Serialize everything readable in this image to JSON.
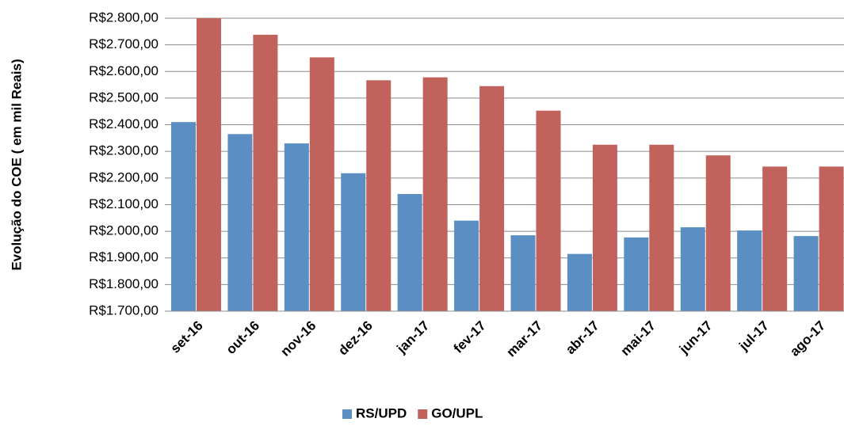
{
  "chart_data": {
    "type": "bar",
    "y_label": "Evolução do COE ( em mil Reais)",
    "categories": [
      "set-16",
      "out-16",
      "nov-16",
      "dez-16",
      "jan-17",
      "fev-17",
      "mar-17",
      "abr-17",
      "mai-17",
      "jun-17",
      "jul-17",
      "ago-17"
    ],
    "series": [
      {
        "name": "RS/UPD",
        "color": "#5b8ec2",
        "values": [
          2410,
          2365,
          2330,
          2218,
          2140,
          2040,
          1985,
          1915,
          1977,
          2015,
          2003,
          1982
        ]
      },
      {
        "name": "GO/UPL",
        "color": "#c1625c",
        "values": [
          2800,
          2738,
          2653,
          2567,
          2578,
          2545,
          2453,
          2325,
          2325,
          2285,
          2243,
          2243
        ]
      }
    ],
    "ylim": [
      1700,
      2800
    ],
    "yticks": [
      {
        "value": 1700,
        "label": "R$1.700,00"
      },
      {
        "value": 1800,
        "label": "R$1.800,00"
      },
      {
        "value": 1900,
        "label": "R$1.900,00"
      },
      {
        "value": 2000,
        "label": "R$2.000,00"
      },
      {
        "value": 2100,
        "label": "R$2.100,00"
      },
      {
        "value": 2200,
        "label": "R$2.200,00"
      },
      {
        "value": 2300,
        "label": "R$2.300,00"
      },
      {
        "value": 2400,
        "label": "R$2.400,00"
      },
      {
        "value": 2500,
        "label": "R$2.500,00"
      },
      {
        "value": 2600,
        "label": "R$2.600,00"
      },
      {
        "value": 2700,
        "label": "R$2.700,00"
      },
      {
        "value": 2800,
        "label": "R$2.800,00"
      }
    ],
    "grid": true,
    "legend": "bottom"
  }
}
